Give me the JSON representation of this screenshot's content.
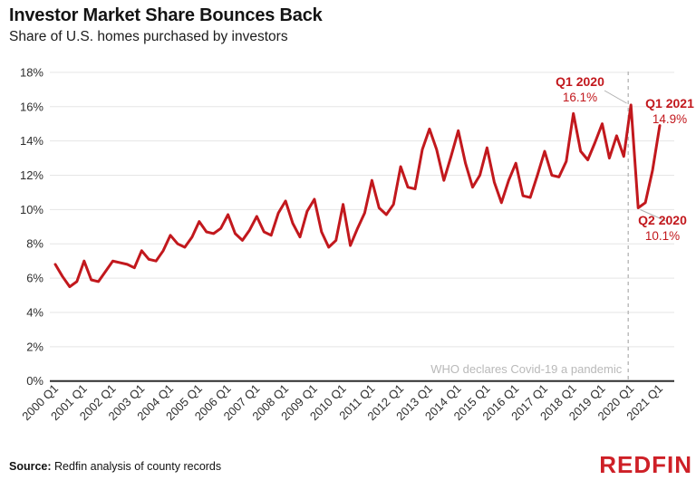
{
  "header": {
    "title": "Investor Market Share Bounces Back",
    "subtitle": "Share of U.S. homes purchased by investors"
  },
  "chart_data": {
    "type": "line",
    "frequency": "quarterly",
    "x_start": "2000 Q1",
    "x_end": "2021 Q1",
    "x_tick_labels": [
      "2000 Q1",
      "2001 Q1",
      "2002 Q1",
      "2003 Q1",
      "2004 Q1",
      "2005 Q1",
      "2006 Q1",
      "2007 Q1",
      "2008 Q1",
      "2009 Q1",
      "2010 Q1",
      "2011 Q1",
      "2012 Q1",
      "2013 Q1",
      "2014 Q1",
      "2015 Q1",
      "2016 Q1",
      "2017 Q1",
      "2018 Q1",
      "2019 Q1",
      "2020 Q1",
      "2021 Q1"
    ],
    "y_ticks": [
      0,
      2,
      4,
      6,
      8,
      10,
      12,
      14,
      16,
      18
    ],
    "y_tick_format": "{v}%",
    "ylim": [
      0,
      18
    ],
    "grid": "horizontal",
    "legend": "none",
    "series": [
      {
        "name": "Share of U.S. homes purchased by investors",
        "color": "#c2181d",
        "values": [
          6.8,
          6.1,
          5.5,
          5.8,
          7.0,
          5.9,
          5.8,
          6.4,
          7.0,
          6.9,
          6.8,
          6.6,
          7.6,
          7.1,
          7.0,
          7.6,
          8.5,
          8.0,
          7.8,
          8.4,
          9.3,
          8.7,
          8.6,
          8.9,
          9.7,
          8.6,
          8.2,
          8.8,
          9.6,
          8.7,
          8.5,
          9.8,
          10.5,
          9.2,
          8.4,
          9.9,
          10.6,
          8.7,
          7.8,
          8.2,
          10.3,
          7.9,
          8.9,
          9.8,
          11.7,
          10.1,
          9.7,
          10.3,
          12.5,
          11.3,
          11.2,
          13.5,
          14.7,
          13.5,
          11.7,
          13.1,
          14.6,
          12.7,
          11.3,
          12.0,
          13.6,
          11.6,
          10.4,
          11.7,
          12.7,
          10.8,
          10.7,
          12.0,
          13.4,
          12.0,
          11.9,
          12.8,
          15.6,
          13.4,
          12.9,
          13.9,
          15.0,
          13.0,
          14.3,
          13.1,
          16.1,
          10.1,
          10.4,
          12.3,
          14.9
        ]
      }
    ],
    "annotations": [
      {
        "label": "Q1 2020",
        "value_label": "16.1%",
        "quarter": "2020 Q1",
        "quarter_index": 80,
        "value": 16.1
      },
      {
        "label": "Q2 2020",
        "value_label": "10.1%",
        "quarter": "2020 Q2",
        "quarter_index": 81,
        "value": 10.1
      },
      {
        "label": "Q1 2021",
        "value_label": "14.9%",
        "quarter": "2021 Q1",
        "quarter_index": 84,
        "value": 14.9
      }
    ],
    "event_line": {
      "label": "WHO declares Covid-19 a pandemic",
      "position_quarter": "2020 Q1",
      "position_quarter_index": 80,
      "style": "dashed"
    }
  },
  "footer": {
    "source_label": "Source:",
    "source_text": " Redfin analysis of county records",
    "logo": "REDFIN"
  },
  "colors": {
    "line": "#c2181d",
    "annotation": "#c2181d",
    "logo": "#ce2027",
    "grid": "#e5e5e5",
    "axis": "#2e2e2e",
    "tick_text": "#2e2e2e",
    "event_line": "#bdbdbd",
    "event_text": "#b9b9b9",
    "callout": "#b0b0b0"
  }
}
